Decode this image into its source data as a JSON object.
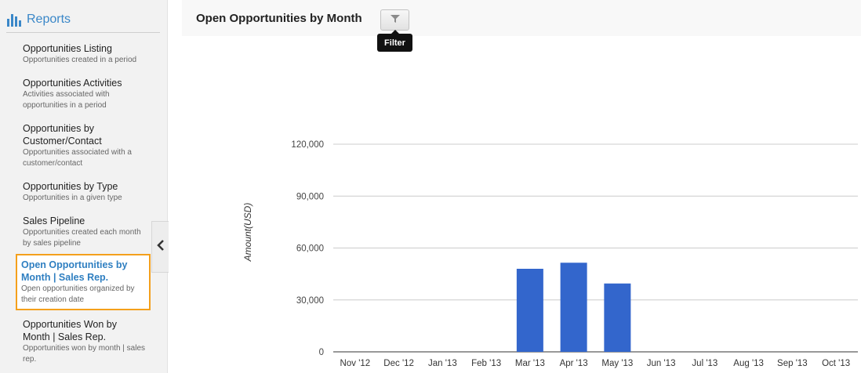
{
  "sidebar": {
    "title": "Reports",
    "items": [
      {
        "title": "Opportunities Listing",
        "desc": "Opportunities created in a period"
      },
      {
        "title": "Opportunities Activities",
        "desc": "Activities associated with opportunities in a period"
      },
      {
        "title": "Opportunities by Customer/Contact",
        "desc": "Opportunities associated with a customer/contact"
      },
      {
        "title": "Opportunities by Type",
        "desc": "Opportunities in a given type"
      },
      {
        "title": "Sales Pipeline",
        "desc": "Opportunities created each month by sales pipeline"
      },
      {
        "title": "Open Opportunities by Month | Sales Rep.",
        "desc": "Open opportunities organized by their creation date"
      },
      {
        "title": "Opportunities Won by Month | Sales Rep.",
        "desc": "Opportunities won by month | sales rep."
      }
    ]
  },
  "header": {
    "title": "Open Opportunities by Month",
    "filter_tooltip": "Filter"
  },
  "colors": {
    "accent": "#3a87c8",
    "active_border": "#f4a01c",
    "bar": "#3366cc"
  },
  "chart_data": {
    "type": "bar",
    "categories": [
      "Nov '12",
      "Dec '12",
      "Jan '13",
      "Feb '13",
      "Mar '13",
      "Apr '13",
      "May '13",
      "Jun '13",
      "Jul '13",
      "Aug '13",
      "Sep '13",
      "Oct '13"
    ],
    "values": [
      0,
      0,
      0,
      0,
      48000,
      51500,
      39500,
      0,
      0,
      0,
      0,
      0
    ],
    "ylabel": "Amount(USD)",
    "xlabel": "",
    "yticks": [
      "0",
      "30,000",
      "60,000",
      "90,000",
      "120,000"
    ],
    "ylim": [
      0,
      120000
    ],
    "grid": true
  }
}
